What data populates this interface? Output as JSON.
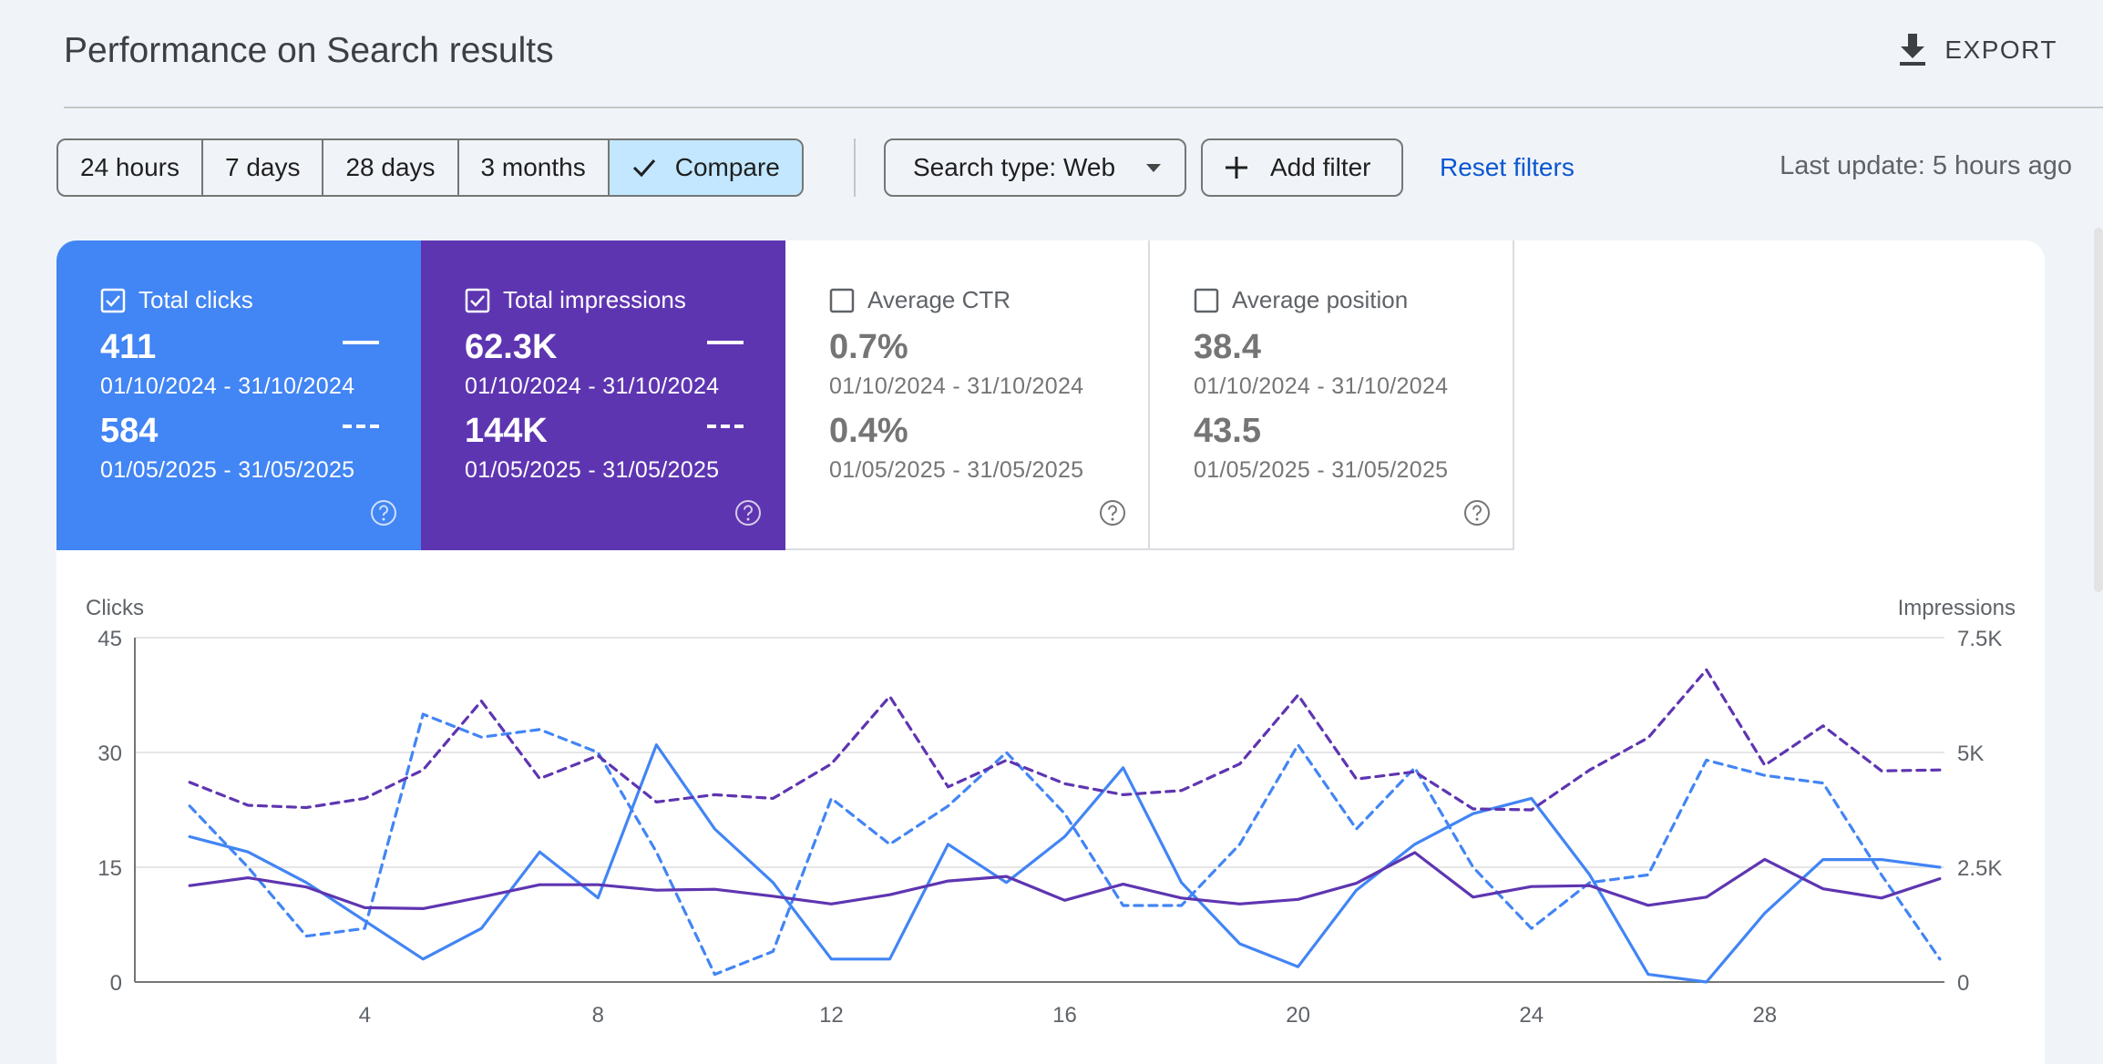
{
  "header": {
    "title": "Performance on Search results",
    "export_label": "EXPORT",
    "export_icon": "download-icon"
  },
  "filters": {
    "date_chips": [
      {
        "label": "24 hours",
        "active": false
      },
      {
        "label": "7 days",
        "active": false
      },
      {
        "label": "28 days",
        "active": false
      },
      {
        "label": "3 months",
        "active": false
      },
      {
        "label": "Compare",
        "active": true
      }
    ],
    "search_type": "Search type: Web",
    "add_filter": "Add filter",
    "reset": "Reset filters",
    "last_update": "Last update: 5 hours ago"
  },
  "metrics": [
    {
      "label": "Total clicks",
      "checked": true,
      "value1": "411",
      "range1": "01/10/2024 - 31/10/2024",
      "value2": "584",
      "range2": "01/05/2025 - 31/05/2025",
      "color": "#4285f4"
    },
    {
      "label": "Total impressions",
      "checked": true,
      "value1": "62.3K",
      "range1": "01/10/2024 - 31/10/2024",
      "value2": "144K",
      "range2": "01/05/2025 - 31/05/2025",
      "color": "#5e35b1"
    },
    {
      "label": "Average CTR",
      "checked": false,
      "value1": "0.7%",
      "range1": "01/10/2024 - 31/10/2024",
      "value2": "0.4%",
      "range2": "01/05/2025 - 31/05/2025",
      "color": "#ffffff"
    },
    {
      "label": "Average position",
      "checked": false,
      "value1": "38.4",
      "range1": "01/10/2024 - 31/10/2024",
      "value2": "43.5",
      "range2": "01/05/2025 - 31/05/2025",
      "color": "#ffffff"
    }
  ],
  "chart_data": {
    "type": "line",
    "ylabel_left": "Clicks",
    "ylabel_right": "Impressions",
    "left_ticks": [
      "0",
      "15",
      "30",
      "45"
    ],
    "right_ticks": [
      "0",
      "2.5K",
      "5K",
      "7.5K"
    ],
    "x_ticks": [
      "4",
      "8",
      "12",
      "16",
      "20",
      "24",
      "28"
    ],
    "x_tick_values": [
      4,
      8,
      12,
      16,
      20,
      24,
      28
    ],
    "x": [
      1,
      2,
      3,
      4,
      5,
      6,
      7,
      8,
      9,
      10,
      11,
      12,
      13,
      14,
      15,
      16,
      17,
      18,
      19,
      20,
      21,
      22,
      23,
      24,
      25,
      26,
      27,
      28,
      29,
      30,
      31
    ],
    "ylim_left": [
      0,
      45
    ],
    "ylim_right": [
      0,
      7500
    ],
    "grid": true,
    "series": [
      {
        "metric": "clicks",
        "period": "01/10/2024 - 31/10/2024",
        "axis": "left",
        "style": "solid",
        "color": "#4285f4",
        "values": [
          19,
          17,
          13,
          8,
          3,
          7,
          17,
          11,
          31,
          20,
          13,
          3,
          3,
          18,
          13,
          19,
          28,
          13,
          5,
          2,
          12,
          18,
          22,
          24,
          14,
          1,
          0,
          9,
          16,
          16,
          15
        ]
      },
      {
        "metric": "clicks",
        "period": "01/05/2025 - 31/05/2025",
        "axis": "left",
        "style": "dashed",
        "color": "#4285f4",
        "values": [
          23,
          15,
          6,
          7,
          35,
          32,
          33,
          30,
          17,
          1,
          4,
          24,
          18,
          23,
          30,
          22,
          10,
          10,
          18,
          31,
          20,
          28,
          15,
          7,
          13,
          14,
          29,
          27,
          26,
          14,
          3
        ]
      },
      {
        "metric": "impressions",
        "period": "01/10/2024 - 31/10/2024",
        "axis": "right",
        "style": "solid",
        "color": "#5e35b1",
        "values": [
          2100,
          2270,
          2070,
          1620,
          1600,
          1850,
          2120,
          2120,
          2000,
          2020,
          1870,
          1700,
          1900,
          2200,
          2300,
          1780,
          2130,
          1830,
          1700,
          1800,
          2150,
          2820,
          1850,
          2080,
          2100,
          1670,
          1850,
          2670,
          2030,
          1830,
          2250
        ]
      },
      {
        "metric": "impressions",
        "period": "01/05/2025 - 31/05/2025",
        "axis": "right",
        "style": "dashed",
        "color": "#5e35b1",
        "values": [
          4350,
          3850,
          3800,
          4000,
          4620,
          6120,
          4430,
          4930,
          3920,
          4080,
          4000,
          4750,
          6220,
          4250,
          4830,
          4320,
          4080,
          4170,
          4750,
          6250,
          4420,
          4580,
          3770,
          3750,
          4620,
          5320,
          6800,
          4720,
          5580,
          4600,
          4620
        ]
      }
    ]
  }
}
